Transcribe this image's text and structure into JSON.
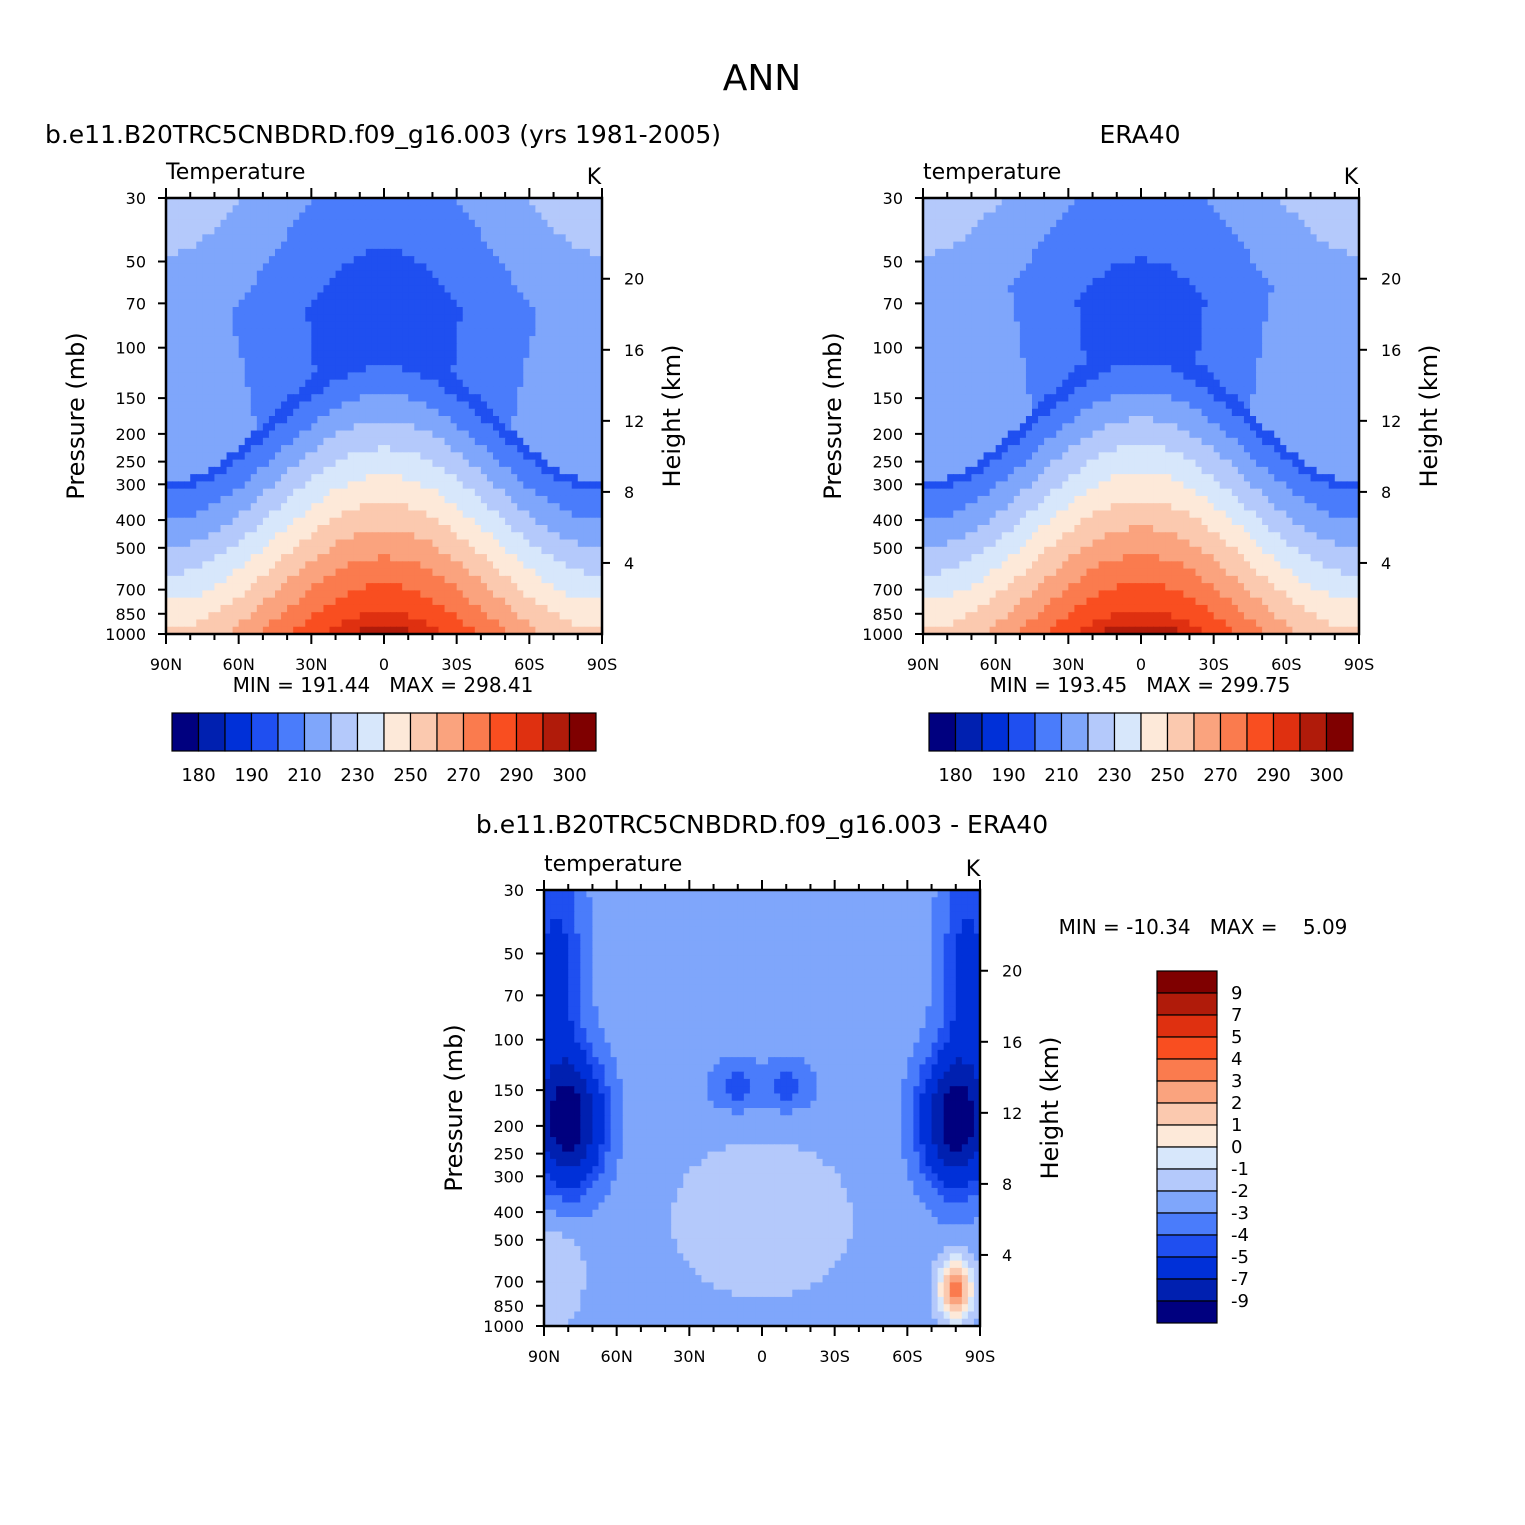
{
  "page": {
    "title": "ANN"
  },
  "colors": {
    "abs_palette": [
      "#00007f",
      "#0020b0",
      "#0030d8",
      "#1f4ff0",
      "#4a7cfb",
      "#7fa6fb",
      "#b4c9fb",
      "#d7e7fb",
      "#fde9d9",
      "#fbc9af",
      "#faa37e",
      "#fa7b4e",
      "#f94e20",
      "#df3010",
      "#b01b0a",
      "#7f0000"
    ],
    "diff_palette": [
      "#7f0000",
      "#b01b0a",
      "#df3010",
      "#f94e20",
      "#fa7b4e",
      "#faa37e",
      "#fbc9af",
      "#fde9d9",
      "#d7e7fb",
      "#b4c9fb",
      "#7fa6fb",
      "#4a7cfb",
      "#1f4ff0",
      "#0030d8",
      "#0020b0",
      "#00007f"
    ]
  },
  "panels": {
    "model": {
      "title": "b.e11.B20TRC5CNBDRD.f09_g16.003 (yrs 1981-2005)",
      "variable": "Temperature",
      "units": "K",
      "stats": "MIN = 191.44   MAX = 298.41"
    },
    "obs": {
      "title": "ERA40",
      "variable": "temperature",
      "units": "K",
      "stats": "MIN = 193.45   MAX = 299.75"
    },
    "diff": {
      "title": "b.e11.B20TRC5CNBDRD.f09_g16.003 - ERA40",
      "variable": "temperature",
      "units": "K",
      "stats": "MIN = -10.34   MAX =    5.09"
    }
  },
  "axes": {
    "ylabel": "Pressure (mb)",
    "ylabel_right": "Height (km)",
    "pressure_ticks": [
      "30",
      "50",
      "70",
      "100",
      "150",
      "200",
      "250",
      "300",
      "400",
      "500",
      "700",
      "850",
      "1000"
    ],
    "height_ticks": [
      "20",
      "16",
      "12",
      "8",
      "4"
    ],
    "lat_ticks": [
      "90N",
      "60N",
      "30N",
      "0",
      "30S",
      "60S",
      "90S"
    ]
  },
  "colorbars": {
    "abs": {
      "labels": [
        "180",
        "190",
        "210",
        "230",
        "250",
        "270",
        "290",
        "300"
      ]
    },
    "diff": {
      "labels": [
        "9",
        "7",
        "5",
        "4",
        "3",
        "2",
        "1",
        "0",
        "-1",
        "-2",
        "-3",
        "-4",
        "-5",
        "-7",
        "-9"
      ]
    }
  },
  "chart_data": [
    {
      "type": "heatmap",
      "title": "b.e11.B20TRC5CNBDRD.f09_g16.003 (yrs 1981-2005)",
      "variable": "Temperature",
      "xlabel": "",
      "ylabel": "Pressure (mb)",
      "ylabel_right": "Height (km)",
      "x_range": [
        90,
        -90
      ],
      "y_range_mb": [
        30,
        1000
      ],
      "contour_levels": [
        180,
        185,
        190,
        200,
        210,
        220,
        230,
        240,
        250,
        260,
        270,
        280,
        290,
        295,
        300
      ],
      "approx_field": {
        "surface_equator_K": 298,
        "tropopause_equator_K": 193,
        "polar_stratosphere_K": 215
      },
      "min": 191.44,
      "max": 298.41
    },
    {
      "type": "heatmap",
      "title": "ERA40",
      "variable": "temperature",
      "xlabel": "",
      "ylabel": "Pressure (mb)",
      "ylabel_right": "Height (km)",
      "x_range": [
        90,
        -90
      ],
      "y_range_mb": [
        30,
        1000
      ],
      "contour_levels": [
        180,
        185,
        190,
        200,
        210,
        220,
        230,
        240,
        250,
        260,
        270,
        280,
        290,
        295,
        300
      ],
      "approx_field": {
        "surface_equator_K": 299,
        "tropopause_equator_K": 195,
        "polar_stratosphere_K": 218
      },
      "min": 193.45,
      "max": 299.75
    },
    {
      "type": "heatmap",
      "title": "b.e11.B20TRC5CNBDRD.f09_g16.003 - ERA40",
      "variable": "temperature",
      "xlabel": "",
      "ylabel": "Pressure (mb)",
      "ylabel_right": "Height (km)",
      "x_range": [
        90,
        -90
      ],
      "y_range_mb": [
        30,
        1000
      ],
      "contour_levels": [
        -9,
        -7,
        -5,
        -4,
        -3,
        -2,
        -1,
        0,
        1,
        2,
        3,
        4,
        5,
        7,
        9
      ],
      "approx_field": {
        "polar_tropopause_bias_K": -9,
        "tropical_bias_K": -2,
        "south_pole_lower_bias_K": 4
      },
      "min": -10.34,
      "max": 5.09
    }
  ]
}
